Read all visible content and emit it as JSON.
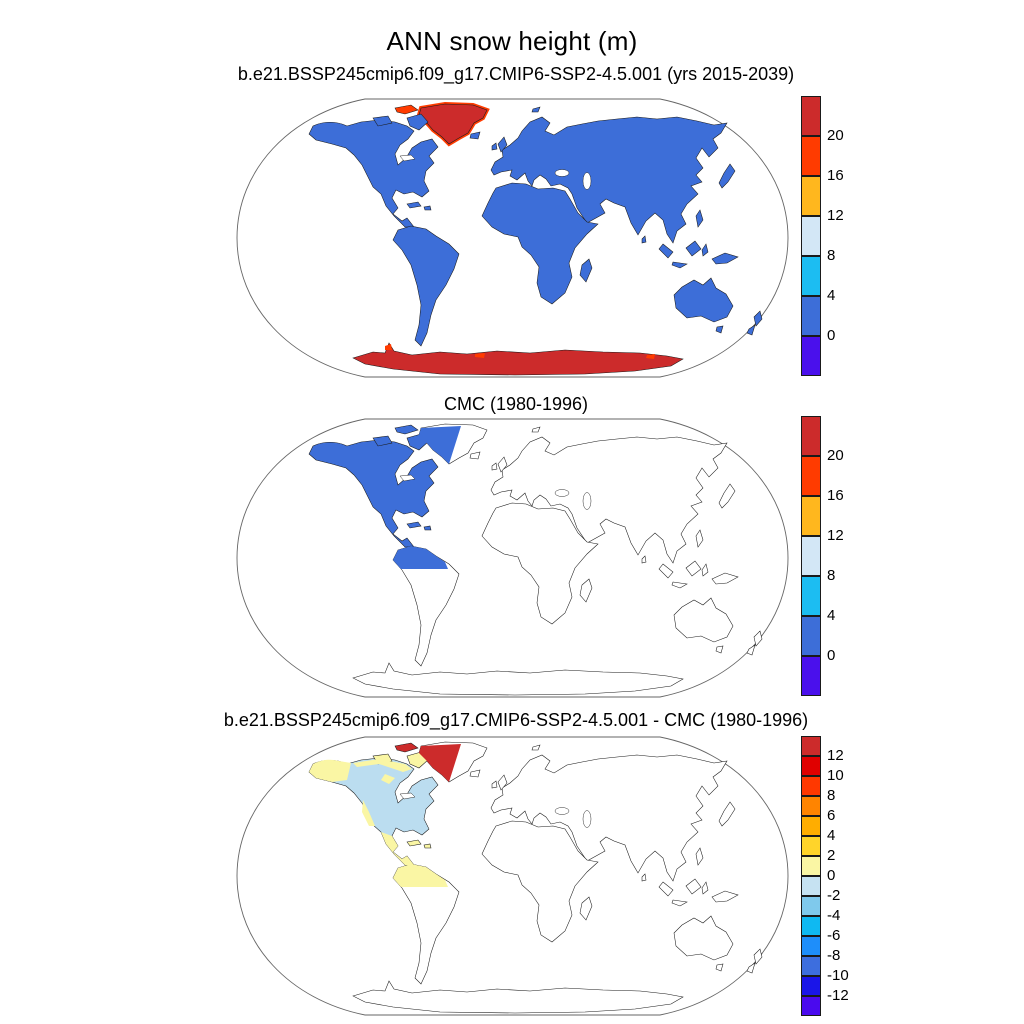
{
  "title": "ANN snow height (m)",
  "panels": [
    {
      "subtitle": "b.e21.BSSP245cmip6.f09_g17.CMIP6-SSP2-4.5.001 (yrs 2015-2039)",
      "colorbar": {
        "ticks_top_to_bottom": [
          "20",
          "16",
          "12",
          "8",
          "4",
          "0"
        ],
        "colors_top_to_bottom": [
          "#CC2B2B",
          "#FF3B00",
          "#FFB71E",
          "#D3E7F6",
          "#1CBDF2",
          "#3D6ED8",
          "#4A10EC"
        ]
      },
      "map": {
        "default_land": "blue",
        "overrides": {
          "greenland": "dark_red",
          "greenland_rim": "orange_red",
          "antarctica": "dark_red",
          "antarctica_spots": "orange_red",
          "ellesmere": "orange_red"
        }
      }
    },
    {
      "subtitle": "CMC (1980-1996)",
      "colorbar": {
        "ticks_top_to_bottom": [
          "20",
          "16",
          "12",
          "8",
          "4",
          "0"
        ],
        "colors_top_to_bottom": [
          "#CC2B2B",
          "#FF3B00",
          "#FFB71E",
          "#D3E7F6",
          "#1CBDF2",
          "#3D6ED8",
          "#4A10EC"
        ]
      },
      "map": {
        "default_land": "white",
        "overrides": {
          "northamerica": "blue",
          "victoria": "blue",
          "baffin": "blue",
          "ellesmere": "blue",
          "cuba": "blue",
          "hispaniola": "blue",
          "greenland_w": "blue",
          "sa_north_patch": "blue"
        }
      }
    },
    {
      "subtitle": "b.e21.BSSP245cmip6.f09_g17.CMIP6-SSP2-4.5.001 - CMC (1980-1996)",
      "colorbar": {
        "ticks_top_to_bottom": [
          "12",
          "10",
          "8",
          "6",
          "4",
          "2",
          "0",
          "-2",
          "-4",
          "-6",
          "-8",
          "-10",
          "-12"
        ],
        "colors_top_to_bottom": [
          "#CC2B2B",
          "#E00000",
          "#FF3800",
          "#FF8400",
          "#FFAD00",
          "#FFD42A",
          "#FAF6A4",
          "#C6E2F2",
          "#7FC9EC",
          "#0FB9F2",
          "#1E8EFA",
          "#3D6EDE",
          "#1A15E8",
          "#4A0AEE"
        ]
      },
      "map": {
        "default_land": "white",
        "overrides": {
          "northamerica": "diff_pale_blue",
          "victoria": "pale_yellow",
          "baffin": "pale_yellow",
          "ellesmere": "dark_red",
          "cuba": "pale_yellow",
          "hispaniola": "pale_yellow",
          "greenland_w": "dark_red",
          "sa_north_patch": "pale_yellow",
          "alaska_patch": "pale_yellow",
          "arctic_strip": "pale_yellow",
          "west_blobs": "pale_yellow",
          "mexico_patch": "pale_yellow"
        }
      }
    }
  ],
  "palette": {
    "white": "#ffffff",
    "blue": "#3D6ED8",
    "dark_red": "#CC2B2B",
    "orange_red": "#FF3B00",
    "amber": "#FFB71E",
    "pale_blue": "#D3E7F6",
    "cyan": "#1CBDF2",
    "violet": "#4A10EC",
    "diff_pale_blue": "#BBDDF0",
    "pale_yellow": "#FAF6A4"
  },
  "chart_data": [
    {
      "type": "heatmap",
      "subtype": "filled-contour world map, Robinson projection",
      "title": "b.e21.BSSP245cmip6.f09_g17.CMIP6-SSP2-4.5.001 (yrs 2015-2039)",
      "variable": "ANN snow height (m)",
      "colorbar_levels": [
        0,
        4,
        8,
        12,
        16,
        20
      ],
      "colorbar_colors_bottom_to_top": [
        "#4A10EC",
        "#3D6ED8",
        "#1CBDF2",
        "#D3E7F6",
        "#FFB71E",
        "#FF3B00",
        "#CC2B2B"
      ],
      "legend_position": "right",
      "values": [
        {
          "region": "all continental land",
          "value_m": "0-4 (blue)"
        },
        {
          "region": "Greenland interior",
          "value_m": ">20 (dark red) with 12-20 rim"
        },
        {
          "region": "Antarctica",
          "value_m": ">20 (dark red) with small 12-20 patches"
        },
        {
          "region": "ocean",
          "value_m": "no data (white)"
        }
      ]
    },
    {
      "type": "heatmap",
      "subtype": "filled-contour world map, Robinson projection",
      "title": "CMC (1980-1996)",
      "variable": "ANN snow height (m)",
      "colorbar_levels": [
        0,
        4,
        8,
        12,
        16,
        20
      ],
      "colorbar_colors_bottom_to_top": [
        "#4A10EC",
        "#3D6ED8",
        "#1CBDF2",
        "#D3E7F6",
        "#FFB71E",
        "#FF3B00",
        "#CC2B2B"
      ],
      "legend_position": "right",
      "values": [
        {
          "region": "North America incl. Mexico, Central America, Caribbean, west Greenland, northern South America (CMC domain)",
          "value_m": "0-4 (blue)"
        },
        {
          "region": "rest of world",
          "value_m": "no data (white outlines)"
        }
      ]
    },
    {
      "type": "heatmap",
      "subtype": "difference map, Robinson projection",
      "title": "b.e21.BSSP245cmip6.f09_g17.CMIP6-SSP2-4.5.001 - CMC (1980-1996)",
      "variable": "ANN snow height difference (m)",
      "colorbar_levels": [
        -12,
        -10,
        -8,
        -6,
        -4,
        -2,
        0,
        2,
        4,
        6,
        8,
        10,
        12
      ],
      "colorbar_colors_bottom_to_top": [
        "#4A0AEE",
        "#1A15E8",
        "#3D6EDE",
        "#1E8EFA",
        "#0FB9F2",
        "#7FC9EC",
        "#C6E2F2",
        "#FAF6A4",
        "#FFD42A",
        "#FFAD00",
        "#FF8400",
        "#FF3800",
        "#E00000",
        "#CC2B2B"
      ],
      "legend_position": "right",
      "values": [
        {
          "region": "most of North America",
          "value_m": "-2 to 0 (pale blue)"
        },
        {
          "region": "Alaska, arctic coast, Mexico, Central America, northern South America",
          "value_m": "0 to 2 (pale yellow)"
        },
        {
          "region": "west Greenland, Ellesmere",
          "value_m": ">12 (dark red)"
        },
        {
          "region": "rest of world",
          "value_m": "no data (white outlines)"
        }
      ]
    }
  ],
  "layout": {
    "panel_tops": [
      96,
      416,
      734
    ],
    "subtitle_tops": [
      64,
      394,
      710
    ],
    "cbar_tops": [
      96,
      416,
      736
    ],
    "cbar_height": 280
  }
}
